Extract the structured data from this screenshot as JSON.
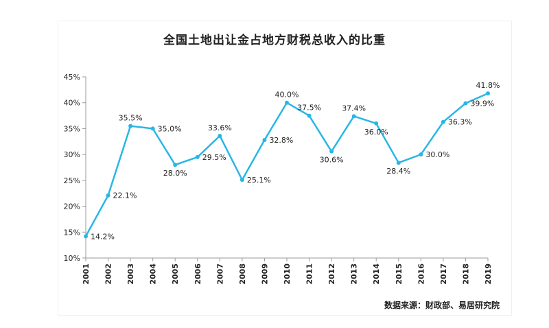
{
  "chart_data": {
    "type": "line",
    "title": "全国土地出让金占地方财税总收入的比重",
    "source": "数据来源：财政部、易居研究院",
    "x": [
      "2001",
      "2002",
      "2003",
      "2004",
      "2005",
      "2006",
      "2007",
      "2008",
      "2009",
      "2010",
      "2011",
      "2012",
      "2013",
      "2014",
      "2015",
      "2016",
      "2017",
      "2018",
      "2019"
    ],
    "series": [
      {
        "values": [
          14.2,
          22.1,
          35.5,
          35.0,
          28.0,
          29.5,
          33.6,
          25.1,
          32.8,
          40.0,
          37.5,
          30.6,
          37.4,
          36.0,
          28.4,
          30.0,
          36.3,
          39.9,
          41.8
        ],
        "labels": [
          "14.2%",
          "22.1%",
          "35.5%",
          "35.0%",
          "28.0%",
          "29.5%",
          "33.6%",
          "25.1%",
          "32.8%",
          "40.0%",
          "37.5%",
          "30.6%",
          "37.4%",
          "36.0%",
          "28.4%",
          "30.0%",
          "36.3%",
          "39.9%",
          "41.8%"
        ],
        "label_side": [
          "right",
          "right",
          "top",
          "right",
          "bottom",
          "right",
          "top",
          "right",
          "right",
          "top",
          "top",
          "bottom",
          "top",
          "bottom",
          "bottom",
          "right",
          "right",
          "right",
          "top"
        ]
      }
    ],
    "ylim": [
      10,
      45
    ],
    "yticks": [
      "10%",
      "15%",
      "20%",
      "25%",
      "30%",
      "35%",
      "40%",
      "45%"
    ],
    "grid": false,
    "colors": {
      "line": "#29b6e6",
      "axis": "#999999"
    }
  }
}
